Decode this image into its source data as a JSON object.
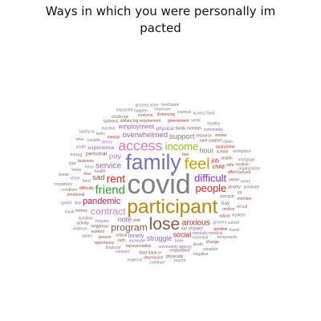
{
  "chart_data": {
    "type": "wordcloud",
    "title_lines": [
      "Ways in which you were personally im",
      "pacted"
    ],
    "words": [
      {
        "text": "covid",
        "weight": 100,
        "color": "#7f7f7f"
      },
      {
        "text": "family",
        "weight": 78,
        "color": "#7b6fbf"
      },
      {
        "text": "participant",
        "weight": 72,
        "color": "#b8860b"
      },
      {
        "text": "lose",
        "weight": 62,
        "color": "#8c564b"
      },
      {
        "text": "feel",
        "weight": 58,
        "color": "#c8a000"
      },
      {
        "text": "access",
        "weight": 52,
        "color": "#e377c2"
      },
      {
        "text": "friend",
        "weight": 44,
        "color": "#2ca02c"
      },
      {
        "text": "rent",
        "weight": 40,
        "color": "#d62728"
      },
      {
        "text": "income",
        "weight": 38,
        "color": "#8fbf1f"
      },
      {
        "text": "difficult",
        "weight": 38,
        "color": "#8a2be2"
      },
      {
        "text": "people",
        "weight": 38,
        "color": "#d62728"
      },
      {
        "text": "program",
        "weight": 36,
        "color": "#8c564b"
      },
      {
        "text": "contract",
        "weight": 36,
        "color": "#e377c2"
      },
      {
        "text": "pandemic",
        "weight": 32,
        "color": "#c2185b"
      },
      {
        "text": "service",
        "weight": 30,
        "color": "#9467bd"
      },
      {
        "text": "anxious",
        "weight": 30,
        "color": "#d62728"
      },
      {
        "text": "overwhelmed",
        "weight": 28,
        "color": "#9467bd"
      },
      {
        "text": "support",
        "weight": 28,
        "color": "#7f7f7f"
      },
      {
        "text": "pay",
        "weight": 28,
        "color": "#e377c2"
      },
      {
        "text": "sad",
        "weight": 28,
        "color": "#8c564b"
      },
      {
        "text": "note",
        "weight": 26,
        "color": "#9467bd"
      },
      {
        "text": "social",
        "weight": 26,
        "color": "#d62728"
      },
      {
        "text": "hour",
        "weight": 26,
        "color": "#7f7f7f"
      },
      {
        "text": "struggle",
        "weight": 26,
        "color": "#9467bd"
      },
      {
        "text": "employment",
        "weight": 24,
        "color": "#9467bd"
      },
      {
        "text": "child",
        "weight": 22,
        "color": "#d62728"
      },
      {
        "text": "lonely",
        "weight": 22,
        "color": "#9467bd"
      },
      {
        "text": "job",
        "weight": 22,
        "color": "#d62728"
      },
      {
        "text": "personal",
        "weight": 20,
        "color": "#8c564b"
      },
      {
        "text": "senior",
        "weight": 20,
        "color": "#7f7f7f"
      },
      {
        "text": "experience",
        "weight": 20,
        "color": "#9467bd"
      },
      {
        "text": "impact",
        "weight": 18,
        "color": "#9467bd"
      },
      {
        "text": "physical",
        "weight": 18,
        "color": "#9467bd"
      },
      {
        "text": "stay",
        "weight": 18,
        "color": "#7f7f7f"
      },
      {
        "text": "live",
        "weight": 16,
        "color": "#d62728"
      },
      {
        "text": "time",
        "weight": 16,
        "color": "#9467bd"
      },
      {
        "text": "increase",
        "weight": 16,
        "color": "#9467bd"
      },
      {
        "text": "require",
        "weight": 16,
        "color": "#9467bd"
      },
      {
        "text": "visit",
        "weight": 16,
        "color": "#8c564b"
      },
      {
        "text": "health",
        "weight": 14,
        "color": "#9467bd"
      },
      {
        "text": "community agency",
        "weight": 14,
        "color": "#9467bd"
      },
      {
        "text": "family member",
        "weight": 14,
        "color": "#8c564b"
      },
      {
        "text": "distancing requirement",
        "weight": 14,
        "color": "#8c564b"
      },
      {
        "text": "critical",
        "weight": 14,
        "color": "#8c564b"
      },
      {
        "text": "difficulty",
        "weight": 14,
        "color": "#d62728"
      },
      {
        "text": "stress",
        "weight": 14,
        "color": "#9467bd"
      },
      {
        "text": "mental",
        "weight": 14,
        "color": "#d62728"
      },
      {
        "text": "hard",
        "weight": 14,
        "color": "#7f7f7f"
      },
      {
        "text": "resource",
        "weight": 12,
        "color": "#8c564b"
      },
      {
        "text": "care support",
        "weight": 12,
        "color": "#8c564b"
      },
      {
        "text": "school",
        "weight": 12,
        "color": "#8c564b"
      },
      {
        "text": "force",
        "weight": 12,
        "color": "#7f7f7f"
      },
      {
        "text": "unable",
        "weight": 12,
        "color": "#8c564b"
      },
      {
        "text": "loss",
        "weight": 12,
        "color": "#8c564b"
      },
      {
        "text": "affect",
        "weight": 12,
        "color": "#d62728"
      },
      {
        "text": "online",
        "weight": 12,
        "color": "#8c564b"
      },
      {
        "text": "mentally medical",
        "weight": 12,
        "color": "#9467bd"
      },
      {
        "text": "anxiety",
        "weight": 12,
        "color": "#8c564b"
      },
      {
        "text": "mother",
        "weight": 12,
        "color": "#8c564b"
      },
      {
        "text": "representative",
        "weight": 12,
        "color": "#8c564b"
      },
      {
        "text": "neighbour",
        "weight": 10,
        "color": "#8c564b"
      },
      {
        "text": "grocery",
        "weight": 10,
        "color": "#7f7f7f"
      },
      {
        "text": "essential",
        "weight": 10,
        "color": "#7f7f7f"
      },
      {
        "text": "government",
        "weight": 10,
        "color": "#d62728"
      },
      {
        "text": "quarantine",
        "weight": 10,
        "color": "#d62728"
      },
      {
        "text": "business",
        "weight": 10,
        "color": "#8c564b"
      },
      {
        "text": "adjust",
        "weight": 10,
        "color": "#8c564b"
      },
      {
        "text": "safe",
        "weight": 10,
        "color": "#8c564b"
      },
      {
        "text": "cerb",
        "weight": 10,
        "color": "#8c564b"
      },
      {
        "text": "positive",
        "weight": 10,
        "color": "#d62728"
      },
      {
        "text": "kid",
        "weight": 10,
        "color": "#8c564b"
      },
      {
        "text": "respondent",
        "weight": 10,
        "color": "#8c564b"
      },
      {
        "text": "food bank or",
        "weight": 8,
        "color": "#8c564b"
      },
      {
        "text": "person",
        "weight": 8,
        "color": "#8c564b"
      },
      {
        "text": "worked",
        "weight": 8,
        "color": "#8c564b"
      },
      {
        "text": "emotional",
        "weight": 8,
        "color": "#8c564b"
      },
      {
        "text": "isolation",
        "weight": 8,
        "color": "#7f7f7f"
      },
      {
        "text": "money",
        "weight": 8,
        "color": "#8c564b"
      },
      {
        "text": "death",
        "weight": 8,
        "color": "#7f7f7f"
      },
      {
        "text": "close",
        "weight": 8,
        "color": "#9467bd"
      },
      {
        "text": "leave",
        "weight": 8,
        "color": "#9467bd"
      },
      {
        "text": "canada",
        "weight": 8,
        "color": "#9467bd"
      },
      {
        "text": "eviction",
        "weight": 8,
        "color": "#7f7f7f"
      },
      {
        "text": "learn",
        "weight": 8,
        "color": "#7f7f7f"
      },
      {
        "text": "exercise",
        "weight": 8,
        "color": "#8c564b"
      },
      {
        "text": "lot",
        "weight": 8,
        "color": "#8c564b"
      },
      {
        "text": "distancing",
        "weight": 7,
        "color": "#8c564b"
      },
      {
        "text": "community",
        "weight": 7,
        "color": "#9467bd"
      },
      {
        "text": "worker",
        "weight": 7,
        "color": "#8c564b"
      },
      {
        "text": "member",
        "weight": 7,
        "color": "#8c564b"
      },
      {
        "text": "receive",
        "weight": 7,
        "color": "#8c564b"
      },
      {
        "text": "week",
        "weight": 7,
        "color": "#7f7f7f"
      },
      {
        "text": "student",
        "weight": 7,
        "color": "#7f7f7f"
      },
      {
        "text": "physically",
        "weight": 7,
        "color": "#8c564b"
      },
      {
        "text": "depression",
        "weight": 7,
        "color": "#8c564b"
      },
      {
        "text": "benefit",
        "weight": 7,
        "color": "#8c564b"
      },
      {
        "text": "change",
        "weight": 7,
        "color": "#8c564b"
      },
      {
        "text": "concern",
        "weight": 7,
        "color": "#9467bd"
      },
      {
        "text": "worry",
        "weight": 7,
        "color": "#7f7f7f"
      },
      {
        "text": "financial",
        "weight": 7,
        "color": "#7f7f7f"
      },
      {
        "text": "virtual",
        "weight": 6,
        "color": "#7f7f7f"
      },
      {
        "text": "opportunity",
        "weight": 6,
        "color": "#8c564b"
      },
      {
        "text": "activity",
        "weight": 6,
        "color": "#8c564b"
      },
      {
        "text": "condition",
        "weight": 6,
        "color": "#7f7f7f"
      },
      {
        "text": "feeling",
        "weight": 6,
        "color": "#7f7f7f"
      },
      {
        "text": "limit",
        "weight": 6,
        "color": "#7f7f7f"
      },
      {
        "text": "clean",
        "weight": 6,
        "color": "#7f7f7f"
      },
      {
        "text": "cancel",
        "weight": 6,
        "color": "#7f7f7f"
      },
      {
        "text": "challenge",
        "weight": 6,
        "color": "#7f7f7f"
      },
      {
        "text": "youth",
        "weight": 6,
        "color": "#7f7f7f"
      },
      {
        "text": "sadness",
        "weight": 6,
        "color": "#8c564b"
      },
      {
        "text": "happen",
        "weight": 6,
        "color": "#7f7f7f"
      },
      {
        "text": "exposure",
        "weight": 6,
        "color": "#7f7f7f"
      },
      {
        "text": "express",
        "weight": 6,
        "color": "#7f7f7f"
      },
      {
        "text": "healthy",
        "weight": 6,
        "color": "#7f7f7f"
      },
      {
        "text": "workplace",
        "weight": 6,
        "color": "#7f7f7f"
      },
      {
        "text": "mortgage",
        "weight": 6,
        "color": "#7f7f7f"
      },
      {
        "text": "organization",
        "weight": 6,
        "color": "#7f7f7f"
      },
      {
        "text": "graduate",
        "weight": 6,
        "color": "#7f7f7f"
      },
      {
        "text": "temporarily",
        "weight": 5,
        "color": "#7f7f7f"
      },
      {
        "text": "situation",
        "weight": 5,
        "color": "#7f7f7f"
      },
      {
        "text": "negative",
        "weight": 5,
        "color": "#7f7f7f"
      },
      {
        "text": "source",
        "weight": 5,
        "color": "#7f7f7f"
      },
      {
        "text": "continue",
        "weight": 5,
        "color": "#7f7f7f"
      },
      {
        "text": "type",
        "weight": 5,
        "color": "#7f7f7f"
      },
      {
        "text": "travel",
        "weight": 5,
        "color": "#7f7f7f"
      },
      {
        "text": "expense",
        "weight": 5,
        "color": "#7f7f7f"
      },
      {
        "text": "option",
        "weight": 5,
        "color": "#7f7f7f"
      },
      {
        "text": "violence",
        "weight": 5,
        "color": "#7f7f7f"
      },
      {
        "text": "negatively",
        "weight": 5,
        "color": "#7f7f7f"
      },
      {
        "text": "grocery store",
        "weight": 5,
        "color": "#7f7f7f"
      },
      {
        "text": "food bank",
        "weight": 5,
        "color": "#7f7f7f"
      },
      {
        "text": "access food",
        "weight": 5,
        "color": "#7f7f7f"
      },
      {
        "text": "family or",
        "weight": 5,
        "color": "#7f7f7f"
      },
      {
        "text": "spend",
        "weight": 5,
        "color": "#7f7f7f"
      },
      {
        "text": "mask",
        "weight": 5,
        "color": "#7f7f7f"
      },
      {
        "text": "break",
        "weight": 5,
        "color": "#7f7f7f"
      },
      {
        "text": "impacted",
        "weight": 5,
        "color": "#7f7f7f"
      },
      {
        "text": "virus",
        "weight": 5,
        "color": "#7f7f7f"
      }
    ]
  }
}
